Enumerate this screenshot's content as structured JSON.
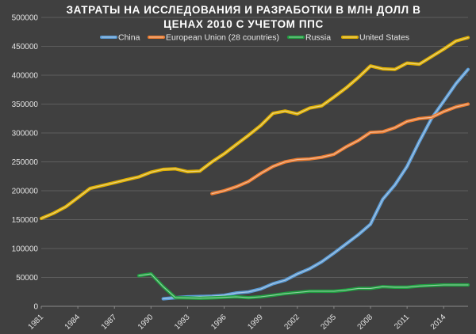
{
  "chart_data": {
    "type": "line",
    "title": "ЗАТРАТЫ НА ИССЛЕДОВАНИЯ И РАЗРАБОТКИ В МЛН ДОЛЛ В ЦЕНАХ 2010 С УЧЕТОМ ППС",
    "title_lines": [
      "ЗАТРАТЫ НА ИССЛЕДОВАНИЯ И РАЗРАБОТКИ В МЛН ДОЛЛ В",
      "ЦЕНАХ 2010 С УЧЕТОМ ППС"
    ],
    "xlabel": "",
    "ylabel": "",
    "ylim": [
      0,
      500000
    ],
    "y_ticks": [
      0,
      50000,
      100000,
      150000,
      200000,
      250000,
      300000,
      350000,
      400000,
      450000,
      500000
    ],
    "x": [
      1981,
      1982,
      1983,
      1984,
      1985,
      1986,
      1987,
      1988,
      1989,
      1990,
      1991,
      1992,
      1993,
      1994,
      1995,
      1996,
      1997,
      1998,
      1999,
      2000,
      2001,
      2002,
      2003,
      2004,
      2005,
      2006,
      2007,
      2008,
      2009,
      2010,
      2011,
      2012,
      2013,
      2014,
      2015,
      2016
    ],
    "xlim": [
      1981,
      2016
    ],
    "x_ticks": [
      "1981",
      "1984",
      "1987",
      "1990",
      "1993",
      "1996",
      "1999",
      "2002",
      "2005",
      "2008",
      "2011",
      "2014"
    ],
    "grid": true,
    "legend_position": "top",
    "series": [
      {
        "name": "China",
        "color": "#5b9bd5",
        "values": [
          null,
          null,
          null,
          null,
          null,
          null,
          null,
          null,
          null,
          null,
          13000,
          15000,
          16500,
          17000,
          17500,
          19000,
          23000,
          25000,
          30000,
          39000,
          45000,
          56000,
          65000,
          77000,
          92000,
          108000,
          124000,
          142000,
          185000,
          210000,
          242000,
          285000,
          325000,
          355000,
          385000,
          410000
        ]
      },
      {
        "name": "European Union (28 countries)",
        "color": "#ed7d31",
        "values": [
          null,
          null,
          null,
          null,
          null,
          null,
          null,
          null,
          null,
          null,
          null,
          null,
          null,
          null,
          195000,
          200000,
          207000,
          216000,
          230000,
          242000,
          250000,
          254000,
          255000,
          258000,
          263000,
          276000,
          287000,
          301000,
          302000,
          309000,
          320000,
          325000,
          327000,
          337000,
          345000,
          350000
        ]
      },
      {
        "name": "Russia",
        "color": "#1fa040",
        "values": [
          null,
          null,
          null,
          null,
          null,
          null,
          null,
          null,
          53000,
          56000,
          34000,
          15000,
          14500,
          14000,
          14500,
          15500,
          16500,
          15000,
          16500,
          19000,
          22000,
          24000,
          26000,
          26000,
          26000,
          28000,
          31000,
          31000,
          34000,
          33000,
          33000,
          35000,
          36000,
          37000,
          37000,
          37000
        ]
      },
      {
        "name": "United States",
        "color": "#e0b000",
        "values": [
          152000,
          161000,
          172000,
          188000,
          204000,
          209000,
          214000,
          219000,
          224000,
          232000,
          237000,
          238000,
          233000,
          234000,
          250000,
          264000,
          280000,
          296000,
          313000,
          334000,
          338000,
          333000,
          343000,
          347000,
          362000,
          378000,
          396000,
          416000,
          411000,
          410000,
          421000,
          419000,
          432000,
          445000,
          459000,
          465000
        ]
      }
    ]
  }
}
